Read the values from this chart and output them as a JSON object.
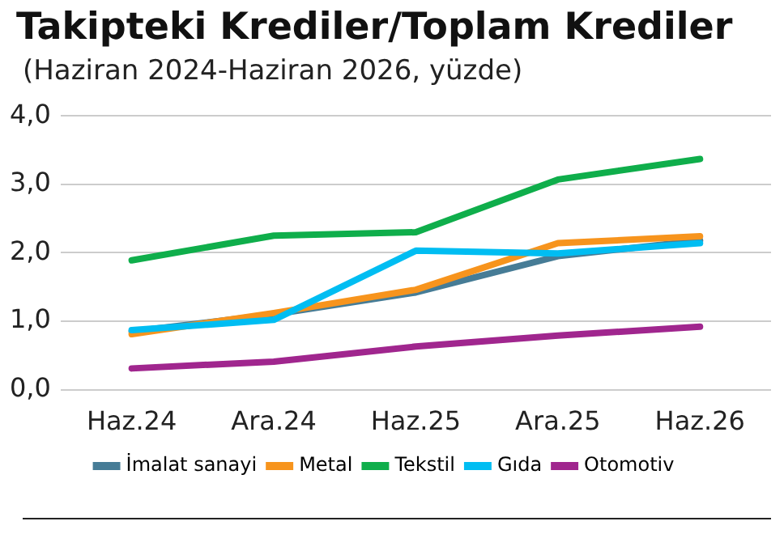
{
  "chart_data": {
    "type": "line",
    "title": "Takipteki Krediler/Toplam Krediler",
    "subtitle": "(Haziran 2024-Haziran 2026, yüzde)",
    "categories": [
      "Haz.24",
      "Ara.24",
      "Haz.25",
      "Ara.25",
      "Haz.26"
    ],
    "series": [
      {
        "name": "İmalat sanayi",
        "color": "#467c96",
        "values": [
          0.85,
          1.1,
          1.42,
          1.95,
          2.18
        ]
      },
      {
        "name": "Metal",
        "color": "#f7941d",
        "values": [
          0.81,
          1.12,
          1.46,
          2.14,
          2.24
        ]
      },
      {
        "name": "Tekstil",
        "color": "#0fae4b",
        "values": [
          1.89,
          2.25,
          2.3,
          3.07,
          3.37
        ]
      },
      {
        "name": "Gıda",
        "color": "#00bdf2",
        "values": [
          0.87,
          1.02,
          2.03,
          1.99,
          2.14
        ]
      },
      {
        "name": "Otomotiv",
        "color": "#a0268e",
        "values": [
          0.31,
          0.41,
          0.63,
          0.79,
          0.92
        ]
      }
    ],
    "ylim": [
      0,
      4
    ],
    "yticks": [
      {
        "value": 0,
        "label": "0,0"
      },
      {
        "value": 1,
        "label": "1,0"
      },
      {
        "value": 2,
        "label": "2,0"
      },
      {
        "value": 3,
        "label": "3,0"
      },
      {
        "value": 4,
        "label": "4,0"
      }
    ],
    "grid": "y",
    "legend": "bottom",
    "marker": "none",
    "line_style": "solid"
  }
}
